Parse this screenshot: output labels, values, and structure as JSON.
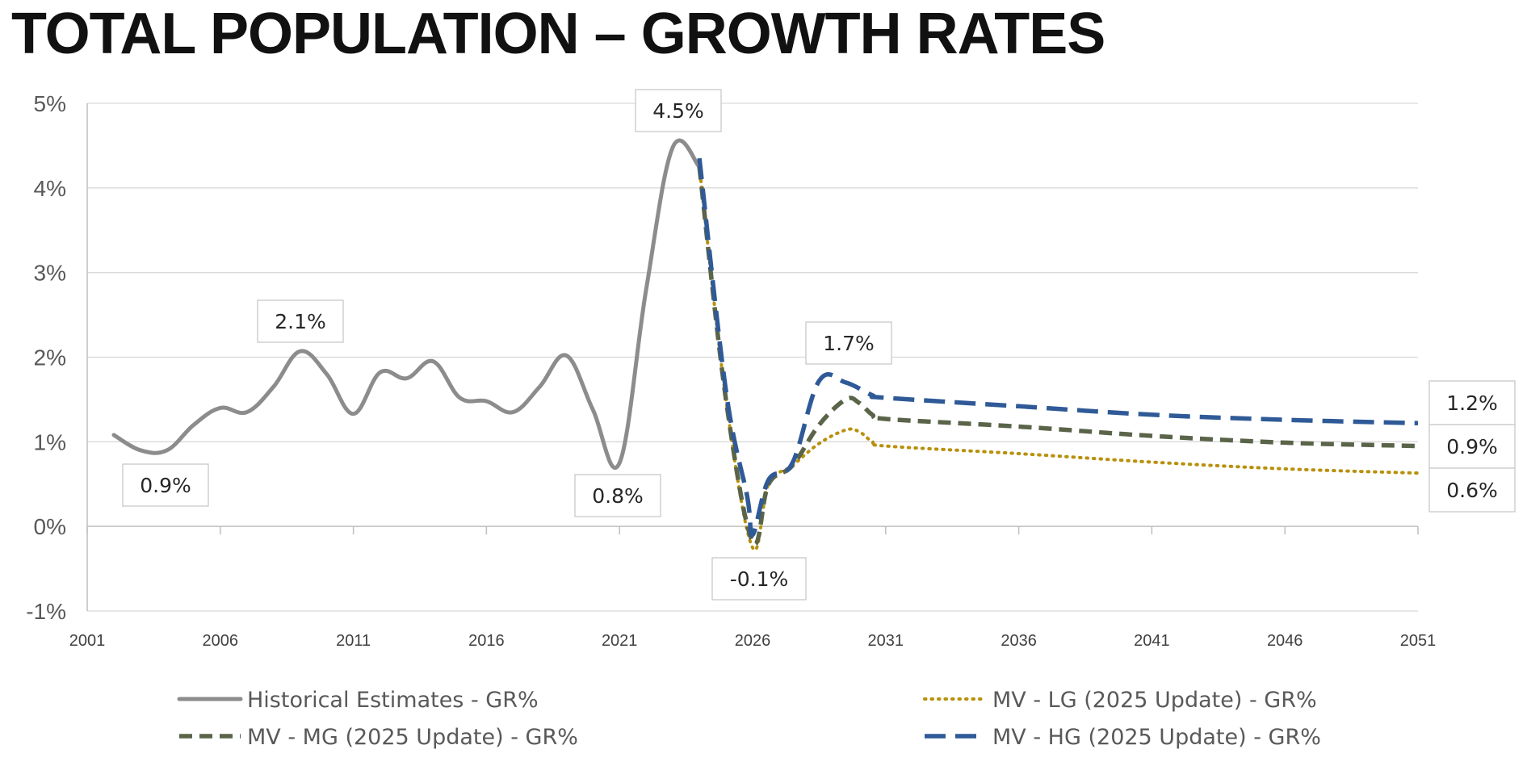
{
  "title": "TOTAL POPULATION – GROWTH RATES",
  "chart_data": {
    "type": "line",
    "xlim": [
      2001,
      2051
    ],
    "ylim": [
      -1,
      5
    ],
    "x_ticks": [
      2001,
      2006,
      2011,
      2016,
      2021,
      2026,
      2031,
      2036,
      2041,
      2046,
      2051
    ],
    "x_tick_labels": [
      "2001",
      "2006",
      "2011",
      "2016",
      "2021",
      "2026",
      "2031",
      "2036",
      "2041",
      "2046",
      "2051"
    ],
    "y_ticks": [
      -1,
      0,
      1,
      2,
      3,
      4,
      5
    ],
    "y_tick_labels": [
      "-1%",
      "0%",
      "1%",
      "2%",
      "3%",
      "4%",
      "5%"
    ],
    "grid": "horizontal",
    "legend_position": "bottom",
    "series": [
      {
        "name": "Historical Estimates - GR%",
        "color": "#8c8c8c",
        "dash": "solid",
        "points": [
          [
            2002,
            1.08
          ],
          [
            2003,
            0.9
          ],
          [
            2004,
            0.9
          ],
          [
            2005,
            1.2
          ],
          [
            2006,
            1.4
          ],
          [
            2007,
            1.35
          ],
          [
            2008,
            1.65
          ],
          [
            2009,
            2.07
          ],
          [
            2010,
            1.8
          ],
          [
            2011,
            1.33
          ],
          [
            2012,
            1.82
          ],
          [
            2013,
            1.75
          ],
          [
            2014,
            1.95
          ],
          [
            2015,
            1.52
          ],
          [
            2016,
            1.48
          ],
          [
            2017,
            1.35
          ],
          [
            2018,
            1.65
          ],
          [
            2019,
            2.02
          ],
          [
            2020,
            1.38
          ],
          [
            2021,
            0.75
          ],
          [
            2022,
            2.8
          ],
          [
            2023,
            4.48
          ],
          [
            2024,
            4.25
          ]
        ]
      },
      {
        "name": "MV - LG (2025 Update) - GR%",
        "color": "#b8900b",
        "dash": "dotted",
        "points": [
          [
            2024,
            4.25
          ],
          [
            2025,
            1.5
          ],
          [
            2026,
            -0.25
          ],
          [
            2026.6,
            0.5
          ],
          [
            2027.5,
            0.72
          ],
          [
            2028.5,
            0.98
          ],
          [
            2029.5,
            1.14
          ],
          [
            2030,
            1.12
          ],
          [
            2030.5,
            1.0
          ],
          [
            2031,
            0.95
          ],
          [
            2036,
            0.86
          ],
          [
            2041,
            0.76
          ],
          [
            2046,
            0.68
          ],
          [
            2051,
            0.63
          ]
        ]
      },
      {
        "name": "MV - MG (2025 Update) - GR%",
        "color": "#5a6448",
        "dash": "dashed",
        "points": [
          [
            2024,
            4.25
          ],
          [
            2025,
            1.5
          ],
          [
            2026,
            -0.18
          ],
          [
            2026.6,
            0.5
          ],
          [
            2027.5,
            0.72
          ],
          [
            2028.5,
            1.2
          ],
          [
            2029.5,
            1.5
          ],
          [
            2030,
            1.46
          ],
          [
            2030.5,
            1.32
          ],
          [
            2031,
            1.27
          ],
          [
            2036,
            1.18
          ],
          [
            2041,
            1.07
          ],
          [
            2046,
            0.99
          ],
          [
            2051,
            0.95
          ]
        ]
      },
      {
        "name": "MV - HG (2025 Update) - GR%",
        "color": "#2f5a97",
        "dash": "long-dash",
        "points": [
          [
            2024,
            4.35
          ],
          [
            2025,
            1.6
          ],
          [
            2025.8,
            0.35
          ],
          [
            2026,
            -0.1
          ],
          [
            2026.6,
            0.55
          ],
          [
            2027.5,
            0.75
          ],
          [
            2028.5,
            1.72
          ],
          [
            2029.5,
            1.7
          ],
          [
            2030.5,
            1.55
          ],
          [
            2031,
            1.52
          ],
          [
            2036,
            1.42
          ],
          [
            2041,
            1.32
          ],
          [
            2046,
            1.26
          ],
          [
            2051,
            1.22
          ]
        ]
      }
    ],
    "data_labels": [
      {
        "x": 2003.5,
        "y": 0.9,
        "text": "0.9%"
      },
      {
        "x": 2009,
        "y": 2.07,
        "text": "2.1%"
      },
      {
        "x": 2021,
        "y": 0.75,
        "text": "0.8%"
      },
      {
        "x": 2023,
        "y": 4.48,
        "text": "4.5%"
      },
      {
        "x": 2026,
        "y": -0.1,
        "text": "-0.1%"
      },
      {
        "x": 2029,
        "y": 1.72,
        "text": "1.7%"
      },
      {
        "x": 2051,
        "y": 1.22,
        "text": "1.2%"
      },
      {
        "x": 2051,
        "y": 0.95,
        "text": "0.9%"
      },
      {
        "x": 2051,
        "y": 0.63,
        "text": "0.6%"
      }
    ]
  }
}
